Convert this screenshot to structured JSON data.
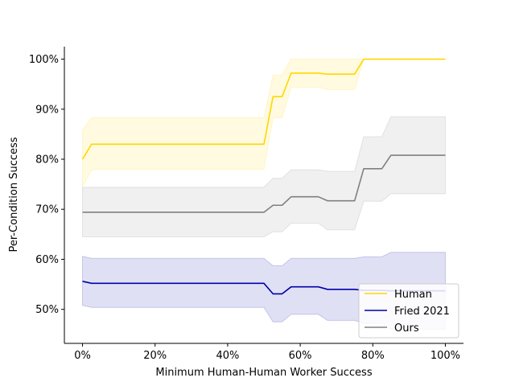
{
  "chart_data": {
    "type": "line",
    "title": "",
    "xlabel": "Minimum Human-Human Worker Success",
    "ylabel": "Per-Condition Success",
    "xlim": [
      -5,
      105
    ],
    "ylim": [
      43.2,
      102.5
    ],
    "x_ticks": [
      0,
      20,
      40,
      60,
      80,
      100
    ],
    "x_tick_labels": [
      "0%",
      "20%",
      "40%",
      "60%",
      "80%",
      "100%"
    ],
    "y_ticks": [
      50,
      60,
      70,
      80,
      90,
      100
    ],
    "y_tick_labels": [
      "50%",
      "60%",
      "70%",
      "80%",
      "90%",
      "100%"
    ],
    "grid": false,
    "legend_position": "lower-right",
    "x": [
      0,
      2.5,
      5,
      50,
      52.5,
      55,
      57.5,
      65,
      67.5,
      75,
      77.5,
      82.5,
      85,
      100
    ],
    "series": [
      {
        "name": "Human",
        "color": "#ffd700",
        "values": [
          80.0,
          83.0,
          83.0,
          83.0,
          92.5,
          92.5,
          97.2,
          97.2,
          97.0,
          97.0,
          100.0,
          100.0,
          100.0,
          100.0
        ],
        "lower": [
          74.5,
          77.8,
          78.0,
          78.0,
          88.3,
          88.3,
          94.4,
          94.4,
          93.9,
          93.9,
          100.0,
          100.0,
          100.0,
          100.0
        ],
        "upper": [
          85.8,
          88.3,
          88.3,
          88.3,
          96.8,
          96.8,
          100.0,
          100.0,
          100.0,
          100.0,
          100.0,
          100.0,
          100.0,
          100.0
        ]
      },
      {
        "name": "Fried 2021",
        "color": "#0000aa",
        "values": [
          55.6,
          55.2,
          55.2,
          55.2,
          53.1,
          53.1,
          54.5,
          54.5,
          54.0,
          54.0,
          53.8,
          53.8,
          53.7,
          53.7
        ],
        "lower": [
          50.8,
          50.4,
          50.4,
          50.4,
          47.5,
          47.5,
          49.0,
          49.0,
          47.8,
          47.8,
          47.2,
          47.2,
          46.0,
          46.0
        ],
        "upper": [
          60.6,
          60.2,
          60.2,
          60.2,
          58.7,
          58.7,
          60.2,
          60.2,
          60.2,
          60.2,
          60.5,
          60.5,
          61.4,
          61.4
        ]
      },
      {
        "name": "Ours",
        "color": "#808080",
        "values": [
          69.4,
          69.4,
          69.4,
          69.4,
          70.8,
          70.8,
          72.5,
          72.5,
          71.7,
          71.7,
          78.1,
          78.1,
          80.8,
          80.8
        ],
        "lower": [
          64.5,
          64.5,
          64.5,
          64.5,
          65.5,
          65.5,
          67.2,
          67.2,
          65.9,
          65.9,
          71.6,
          71.6,
          73.1,
          73.1
        ],
        "upper": [
          74.4,
          74.4,
          74.4,
          74.4,
          76.2,
          76.2,
          77.9,
          77.9,
          77.6,
          77.6,
          84.5,
          84.5,
          88.5,
          88.5
        ]
      }
    ]
  }
}
